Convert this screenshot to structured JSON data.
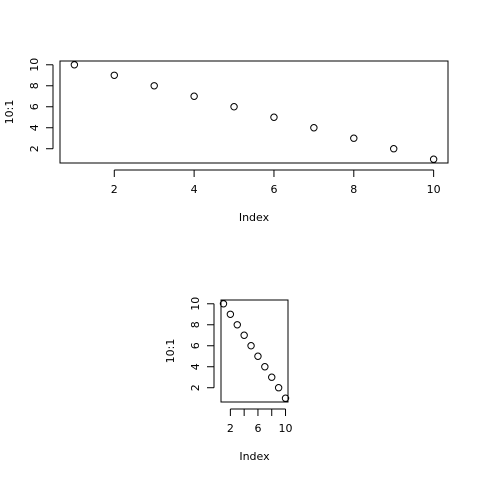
{
  "chart_data": [
    {
      "type": "scatter",
      "x_label": "Index",
      "y_label": "10:1",
      "x": [
        1,
        2,
        3,
        4,
        5,
        6,
        7,
        8,
        9,
        10
      ],
      "values": [
        10,
        9,
        8,
        7,
        6,
        5,
        4,
        3,
        2,
        1
      ],
      "color": "#000000",
      "xlim": [
        0.64,
        10.36
      ],
      "ylim": [
        0.64,
        10.36
      ],
      "xticks": [
        2,
        4,
        6,
        8,
        10
      ],
      "yticks": [
        2,
        4,
        6,
        8,
        10
      ],
      "xticks_unlabeled": []
    },
    {
      "type": "scatter",
      "x_label": "Index",
      "y_label": "10:1",
      "x": [
        1,
        2,
        3,
        4,
        5,
        6,
        7,
        8,
        9,
        10
      ],
      "values": [
        10,
        9,
        8,
        7,
        6,
        5,
        4,
        3,
        2,
        1
      ],
      "color": "#000000",
      "xlim": [
        0.64,
        10.36
      ],
      "ylim": [
        0.64,
        10.36
      ],
      "xticks": [
        2,
        6,
        10
      ],
      "yticks": [
        2,
        4,
        6,
        8,
        10
      ],
      "xticks_unlabeled": [
        4,
        8
      ]
    }
  ]
}
